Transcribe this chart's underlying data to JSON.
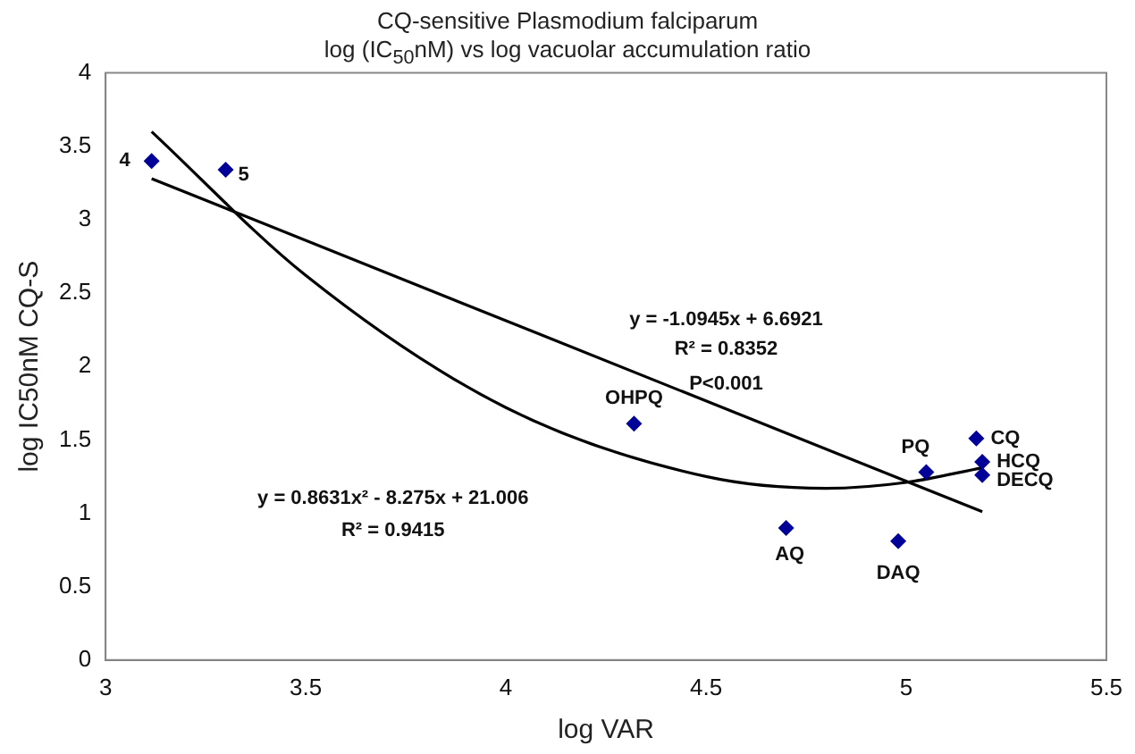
{
  "chart_data": {
    "type": "scatter",
    "title": "CQ-sensitive Plasmodium falciparum",
    "subtitle": "log (IC$_{50}$nM) vs log vacuolar accumulation ratio",
    "xlabel": "log VAR",
    "ylabel": "log IC50nM CQ-S",
    "xlim": [
      3,
      5.5
    ],
    "xticks": [
      3,
      3.5,
      4,
      4.5,
      5,
      5.5
    ],
    "ylim": [
      0,
      4
    ],
    "yticks": [
      0,
      0.5,
      1,
      1.5,
      2,
      2.5,
      3,
      3.5,
      4
    ],
    "grid": false,
    "legend": false,
    "marker": "diamond",
    "series": [
      {
        "color": "#000099",
        "x": [
          3.115,
          3.3,
          4.32,
          4.7,
          4.98,
          5.05,
          5.175,
          5.19,
          5.19
        ],
        "values": [
          3.4,
          3.34,
          1.61,
          0.9,
          0.81,
          1.28,
          1.51,
          1.35,
          1.26
        ]
      },
      {
        "type": "line",
        "color": "#000000",
        "marker": "none",
        "x": [
          3.115,
          5.19
        ],
        "values": [
          3.28,
          1.01
        ]
      },
      {
        "type": "line",
        "color": "#000000",
        "marker": "none",
        "x": [
          3.115,
          3.5,
          4,
          4.5,
          4.8,
          5,
          5.19
        ],
        "values": [
          3.6,
          2.62,
          1.72,
          1.25,
          1.17,
          1.21,
          1.31
        ]
      }
    ],
    "annotations": [
      {
        "text": "4",
        "x": 3.115,
        "y": 3.4
      },
      {
        "text": "5",
        "x": 3.3,
        "y": 3.34
      },
      {
        "text": "OHPQ",
        "x": 4.32,
        "y": 1.61
      },
      {
        "text": "AQ",
        "x": 4.7,
        "y": 0.9
      },
      {
        "text": "DAQ",
        "x": 4.98,
        "y": 0.81
      },
      {
        "text": "PQ",
        "x": 5.05,
        "y": 1.28
      },
      {
        "text": "CQ",
        "x": 5.175,
        "y": 1.51
      },
      {
        "text": "HCQ",
        "x": 5.19,
        "y": 1.35
      },
      {
        "text": "DECQ",
        "x": 5.19,
        "y": 1.26
      },
      "y = -1.0945x + 6.6921",
      "R² = 0.8352",
      "P<0.001",
      "y = 0.8631x² - 8.275x + 21.006",
      "R² = 0.9415"
    ]
  }
}
